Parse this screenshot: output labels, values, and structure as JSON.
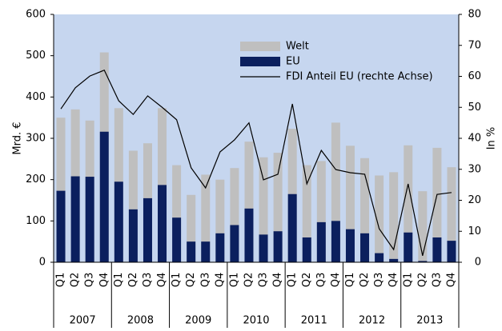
{
  "chart_data": {
    "type": "bar",
    "ylabel": "Mrd. €",
    "y2label": "In %",
    "categories": [
      "Q1",
      "Q2",
      "Q3",
      "Q4",
      "Q1",
      "Q2",
      "Q3",
      "Q4",
      "Q1",
      "Q2",
      "Q3",
      "Q4",
      "Q1",
      "Q2",
      "Q3",
      "Q4",
      "Q1",
      "Q2",
      "Q3",
      "Q4",
      "Q1",
      "Q2",
      "Q3",
      "Q4",
      "Q1",
      "Q2",
      "Q3",
      "Q4"
    ],
    "years": [
      "2007",
      "2008",
      "2009",
      "2010",
      "2011",
      "2012",
      "2013"
    ],
    "series": [
      {
        "name": "Welt",
        "color": "#bfbfbf",
        "type": "bar",
        "values": [
          350,
          370,
          343,
          508,
          373,
          270,
          288,
          373,
          235,
          163,
          212,
          200,
          228,
          292,
          254,
          265,
          323,
          235,
          245,
          338,
          282,
          252,
          210,
          218,
          283,
          172,
          277,
          230
        ]
      },
      {
        "name": "EU",
        "color": "#0b1f5e",
        "type": "bar",
        "values": [
          173,
          208,
          207,
          316,
          195,
          128,
          155,
          187,
          108,
          50,
          50,
          70,
          90,
          130,
          67,
          75,
          165,
          60,
          97,
          100,
          80,
          70,
          22,
          8,
          72,
          3,
          60,
          52
        ]
      },
      {
        "name": "FDI Anteil EU (rechte Achse)",
        "color": "#000000",
        "type": "line",
        "axis": "y2",
        "values": [
          49.5,
          56.3,
          60.1,
          62,
          52.1,
          47.7,
          53.7,
          50,
          46,
          30.5,
          24,
          35.6,
          39.5,
          45,
          26.6,
          28.4,
          51.1,
          25.3,
          36.1,
          29.9,
          28.9,
          28.4,
          10.8,
          4.1,
          25.3,
          2.1,
          21.9,
          22.5
        ]
      }
    ],
    "ylim": [
      0,
      600
    ],
    "yticks": [
      0,
      100,
      200,
      300,
      400,
      500,
      600
    ],
    "y2lim": [
      0,
      80
    ],
    "y2ticks": [
      0,
      10,
      20,
      30,
      40,
      50,
      60,
      70,
      80
    ],
    "background": "#c6d6ef"
  }
}
